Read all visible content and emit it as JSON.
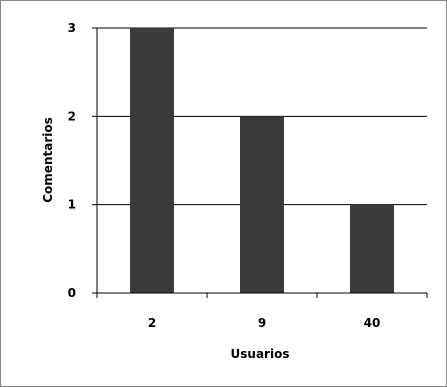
{
  "chart_data": {
    "type": "bar",
    "categories": [
      "2",
      "9",
      "40"
    ],
    "values": [
      3,
      2,
      1
    ],
    "title": "",
    "xlabel": "Usuarios",
    "ylabel": "Comentarios",
    "ylim": [
      0,
      3
    ],
    "yticks": [
      0,
      1,
      2,
      3
    ],
    "grid": true,
    "legend": "none",
    "colors": {
      "bar": "#3b3b3b",
      "grid": "#000000",
      "axis": "#000000",
      "border": "#888888",
      "background": "#ffffff"
    }
  }
}
